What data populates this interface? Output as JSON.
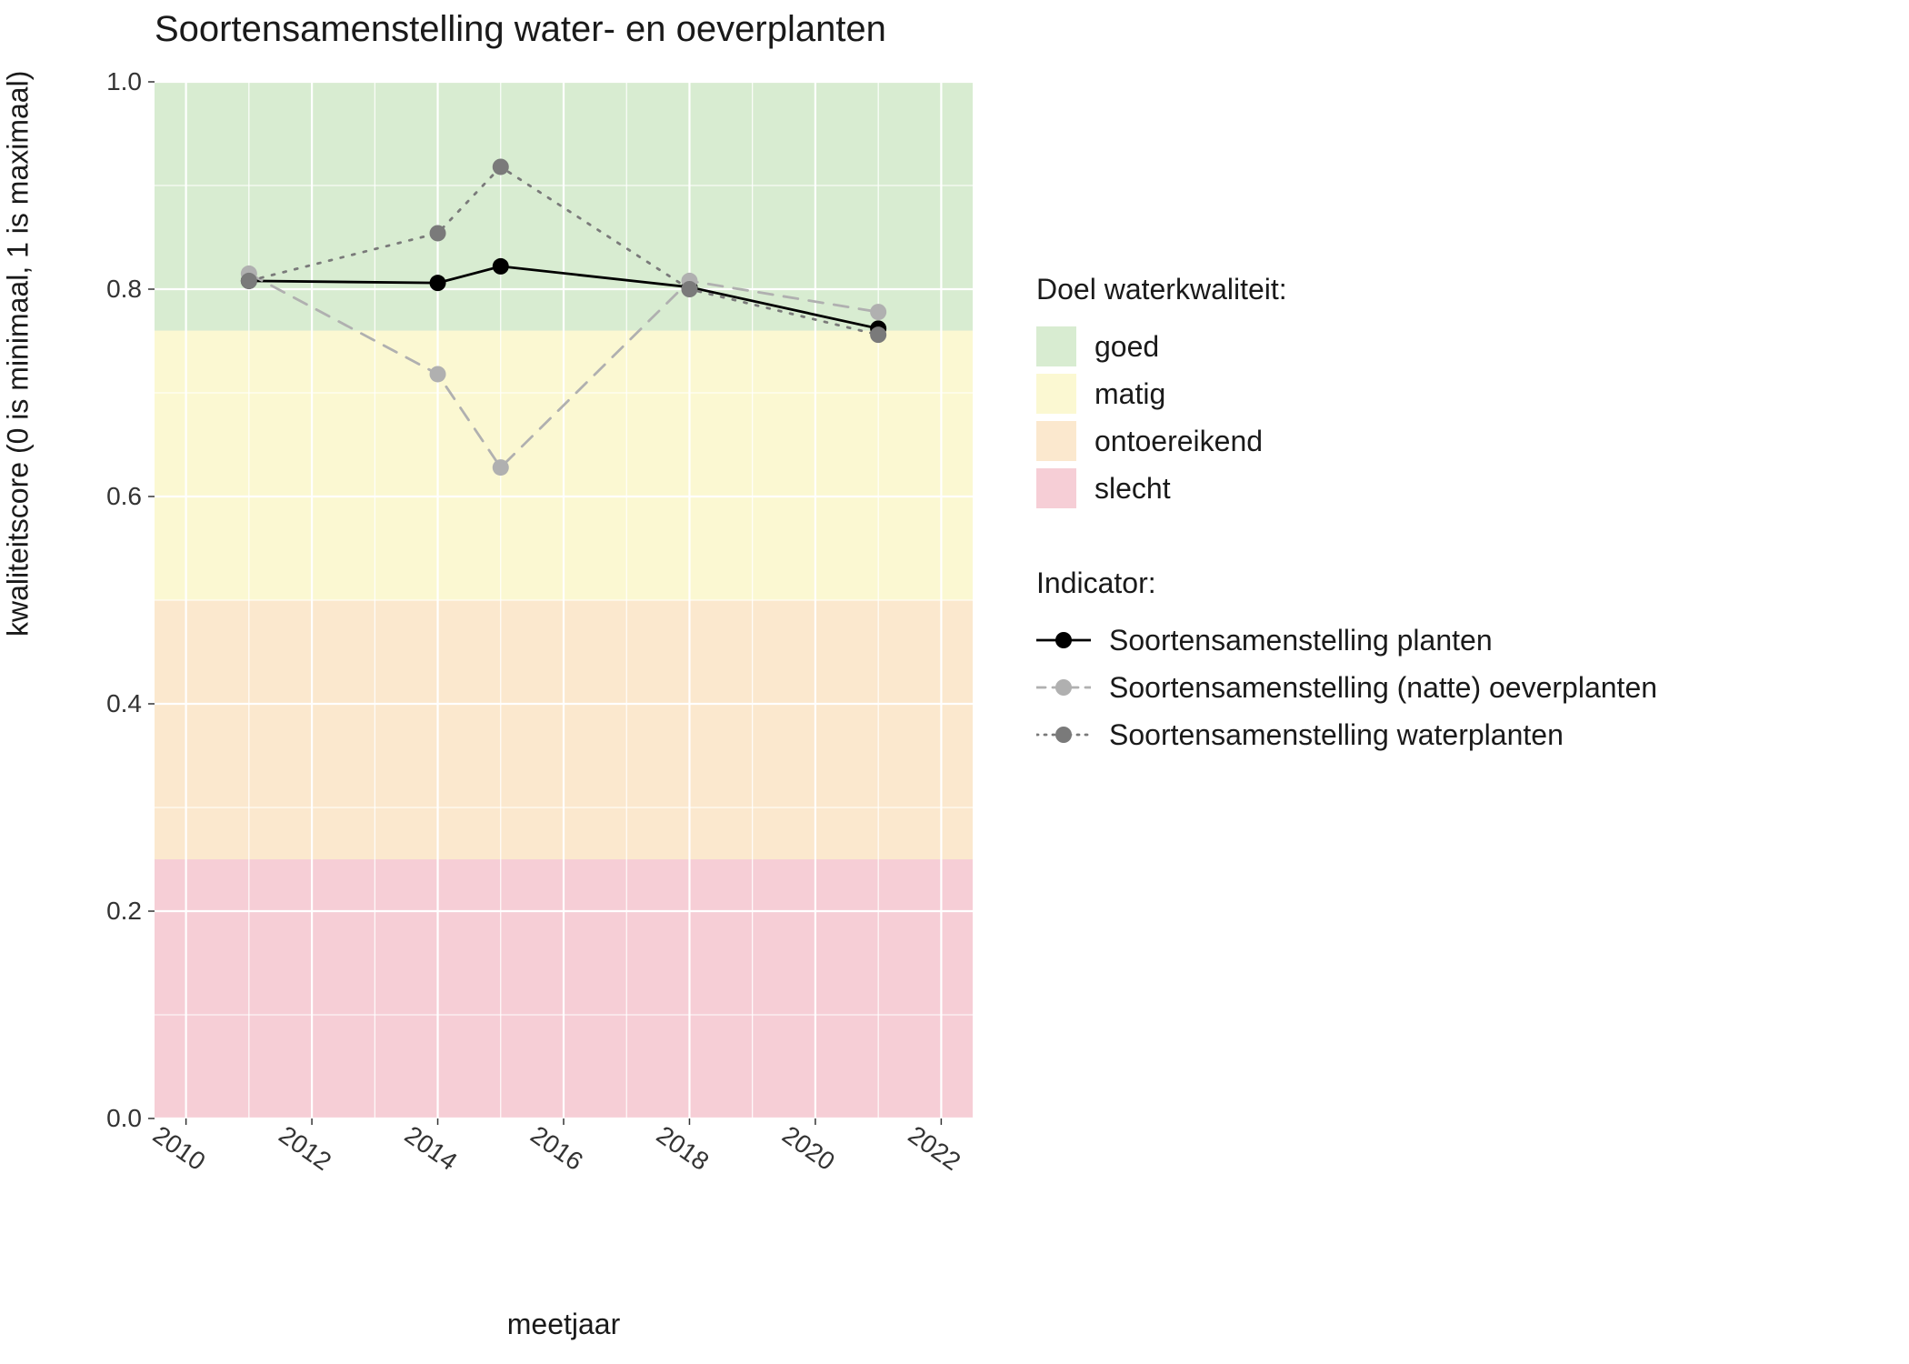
{
  "chart": {
    "type": "line",
    "title": "Soortensamenstelling water- en oeverplanten",
    "title_fontsize": 40,
    "xlabel": "meetjaar",
    "ylabel": "kwaliteitscore (0 is minimaal, 1 is maximaal)",
    "label_fontsize": 32,
    "tick_fontsize": 28,
    "xlim": [
      2009.5,
      2022.5
    ],
    "ylim": [
      0.0,
      1.0
    ],
    "ytick_step": 0.2,
    "xticks": [
      2010,
      2012,
      2014,
      2016,
      2018,
      2020,
      2022
    ],
    "xtick_rotate_deg": 35,
    "grid_color": "#ffffff",
    "grid_width_major": 2.2,
    "grid_width_minor": 1.1,
    "panel_background": "#ebebeb",
    "marker_radius": 9,
    "line_width": 2.8,
    "bands": [
      {
        "label": "goed",
        "from": 0.76,
        "to": 1.0,
        "color": "#d8ecd1"
      },
      {
        "label": "matig",
        "from": 0.5,
        "to": 0.76,
        "color": "#fbf8d2"
      },
      {
        "label": "ontoereikend",
        "from": 0.25,
        "to": 0.5,
        "color": "#fbe8ce"
      },
      {
        "label": "slecht",
        "from": 0.0,
        "to": 0.25,
        "color": "#f6ced6"
      }
    ],
    "series": [
      {
        "name": "Soortensamenstelling planten",
        "color": "#000000",
        "marker_color": "#000000",
        "dash": "solid",
        "x": [
          2011,
          2014,
          2015,
          2018,
          2021
        ],
        "y": [
          0.808,
          0.806,
          0.822,
          0.802,
          0.762
        ]
      },
      {
        "name": "Soortensamenstelling (natte) oeverplanten",
        "color": "#b0b0b0",
        "marker_color": "#b0b0b0",
        "dash": "dashed",
        "x": [
          2011,
          2014,
          2015,
          2018,
          2021
        ],
        "y": [
          0.815,
          0.718,
          0.628,
          0.808,
          0.778
        ]
      },
      {
        "name": "Soortensamenstelling waterplanten",
        "color": "#7a7a7a",
        "marker_color": "#7a7a7a",
        "dash": "dotted",
        "x": [
          2011,
          2014,
          2015,
          2018,
          2021
        ],
        "y": [
          0.808,
          0.854,
          0.918,
          0.8,
          0.756
        ]
      }
    ],
    "legend": {
      "bands_title": "Doel waterkwaliteit:",
      "series_title": "Indicator:"
    }
  }
}
